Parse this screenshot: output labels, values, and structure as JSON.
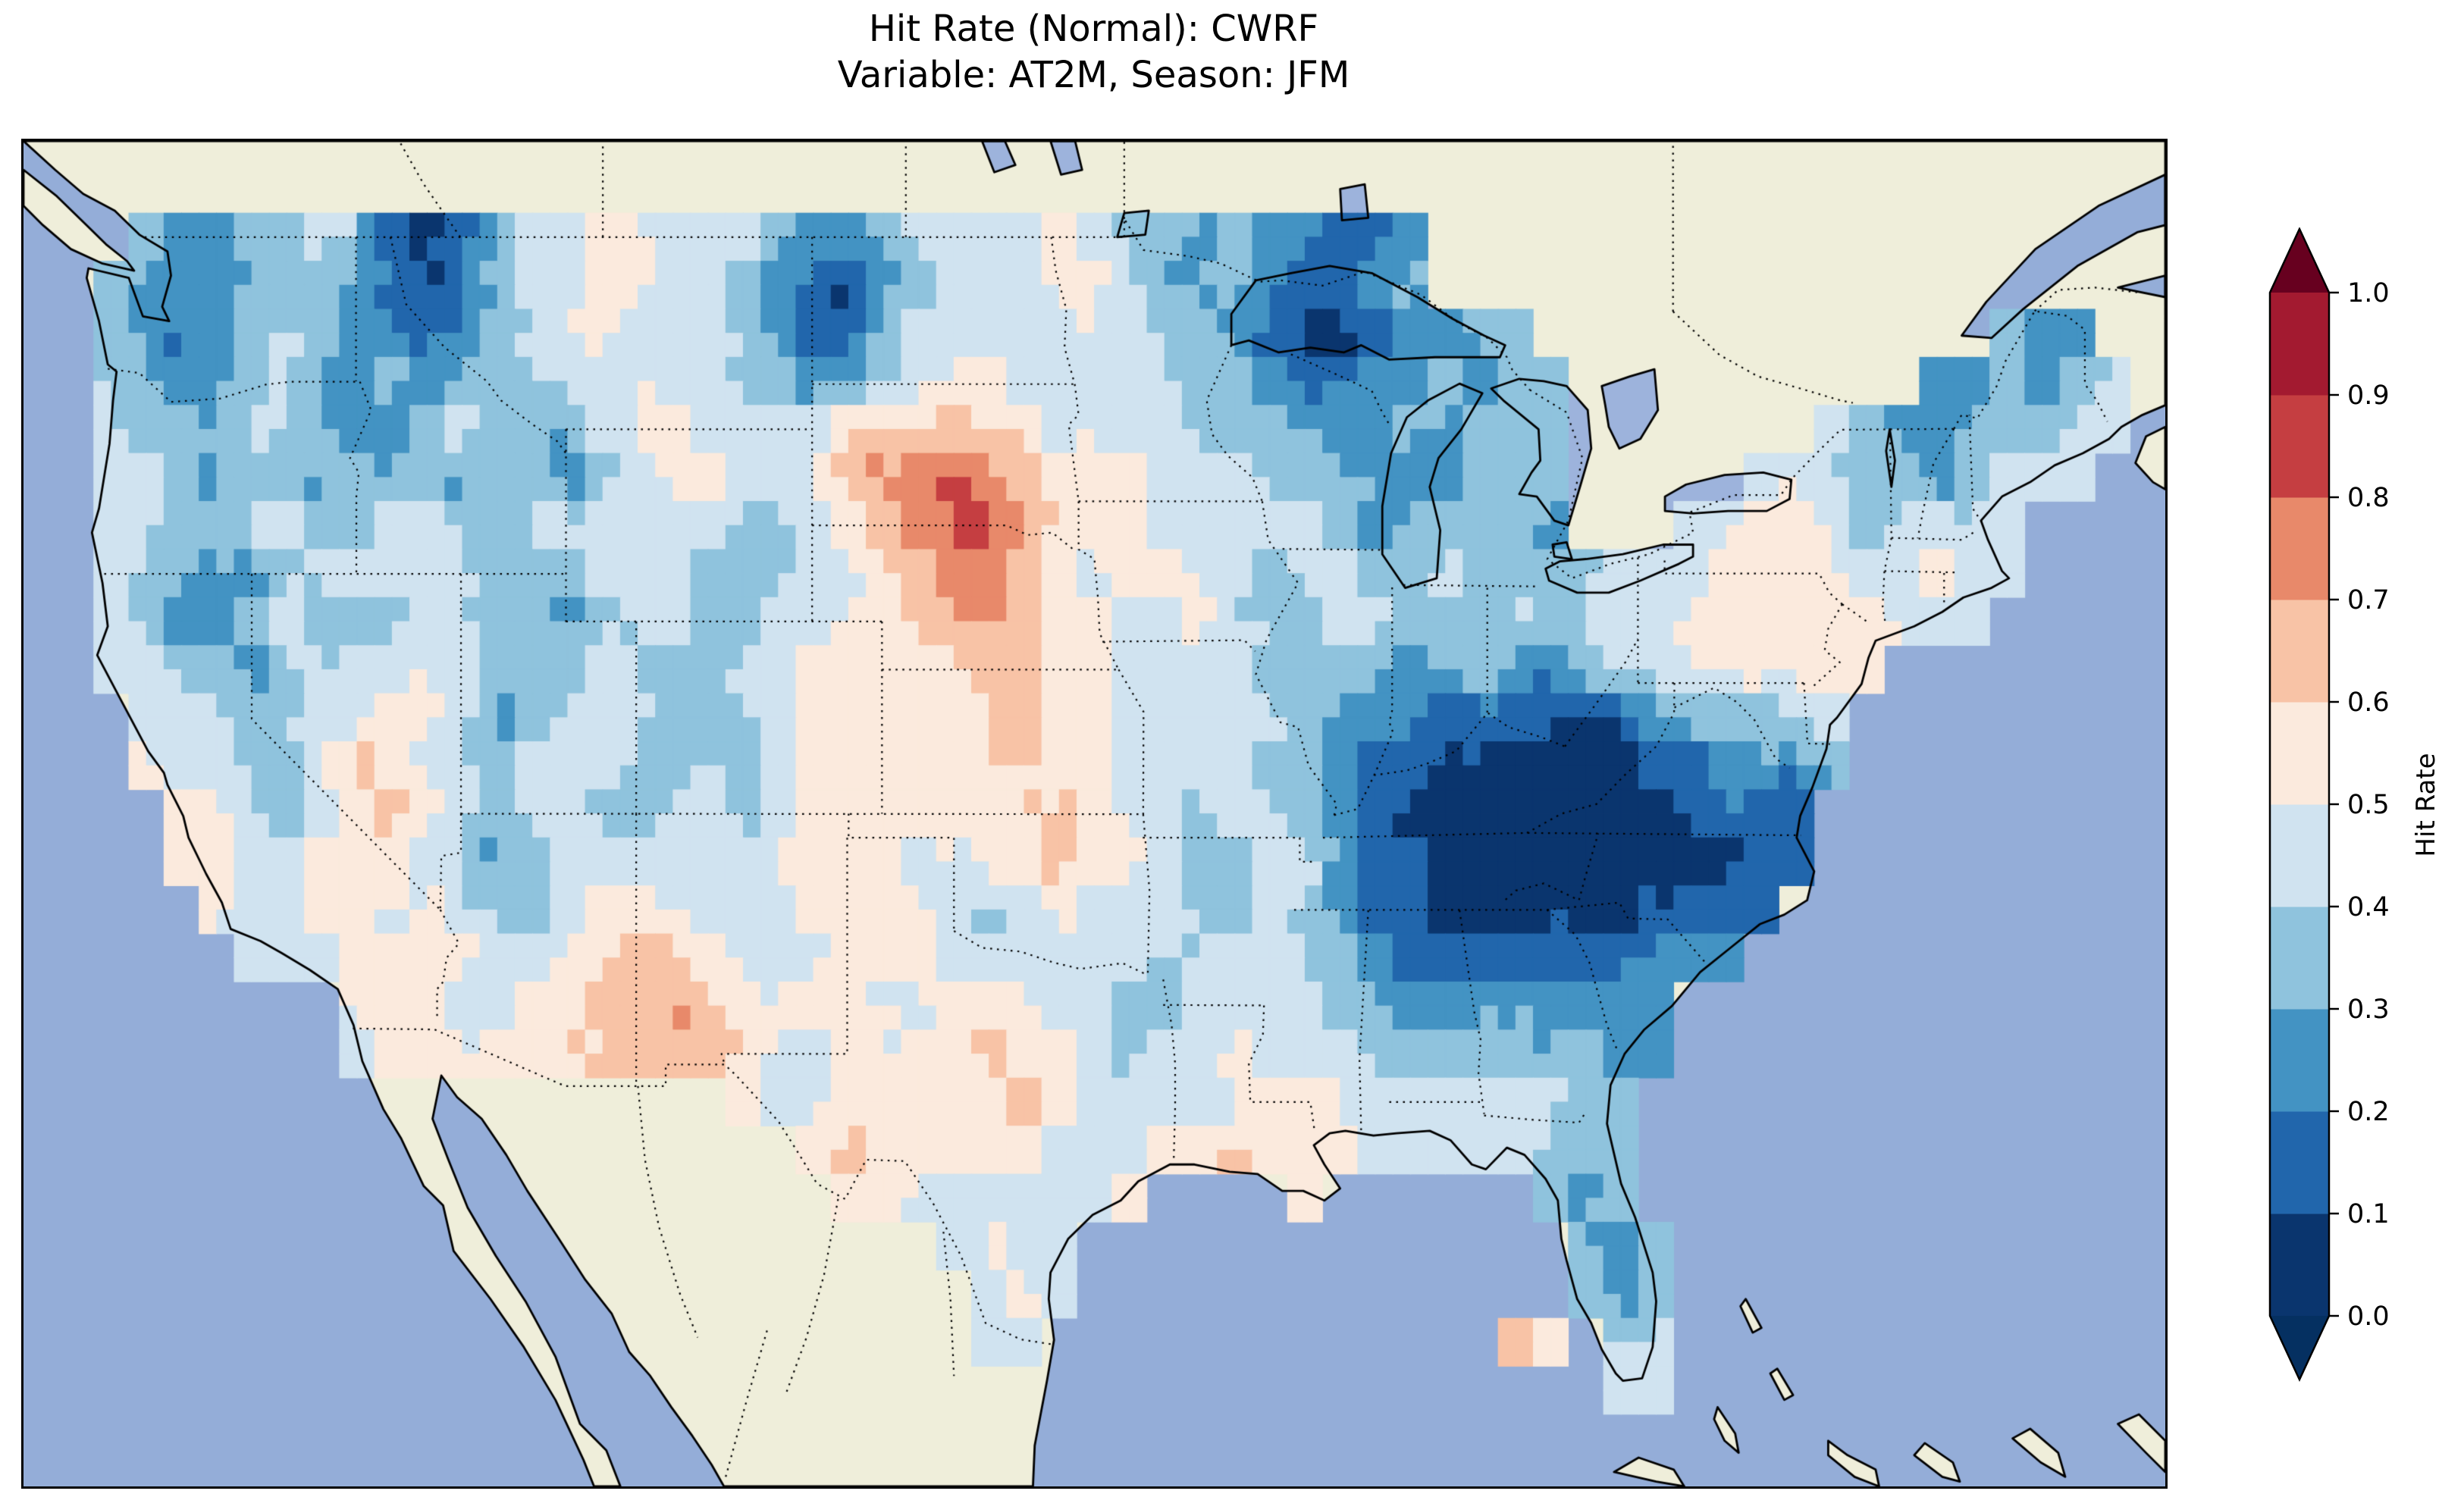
{
  "title": {
    "line1": "Hit Rate (Normal): CWRF",
    "line2": "Variable: AT2M, Season: JFM"
  },
  "colorbar": {
    "label": "Hit Rate",
    "ticks": [
      "0.0",
      "0.1",
      "0.2",
      "0.3",
      "0.4",
      "0.5",
      "0.6",
      "0.7",
      "0.8",
      "0.9",
      "1.0"
    ]
  },
  "colors": {
    "background": "#ffffff",
    "ocean": "#94add8",
    "lake": "#9db3dc",
    "land": "#efeeda",
    "coast": "#000000",
    "border": "#000000",
    "title_color": "#000000",
    "bins": [
      "#0a356e",
      "#2166ac",
      "#4393c3",
      "#8fc3dd",
      "#d0e3f0",
      "#fbeadd",
      "#f8c3a6",
      "#e8896a",
      "#c53e41",
      "#a31a30"
    ],
    "under": "#053061",
    "over": "#67001f"
  },
  "chart_data": {
    "type": "heatmap",
    "title": "Hit Rate (Normal): CWRF",
    "subtitle": "Variable: AT2M, Season: JFM",
    "metric": "Hit Rate (Normal)",
    "model": "CWRF",
    "variable": "AT2M",
    "season": "JFM",
    "colorbar_label": "Hit Rate",
    "value_min": 0.0,
    "value_max": 1.0,
    "bin_width": 0.1,
    "colorbar_ticks": [
      0.0,
      0.1,
      0.2,
      0.3,
      0.4,
      0.5,
      0.6,
      0.7,
      0.8,
      0.9,
      1.0
    ],
    "legend_position": "right",
    "map_extent": {
      "lon_min": -126.5,
      "lon_max": -65.5,
      "lat_min": 23,
      "lat_max": 51
    },
    "grid": {
      "description": "Approximate hit-rate field over CONUS read from the map; each char is one 1x1 degree cell; digit d means hit rate in bin [d/10,(d+1)/10); '.' = no data (outside CWRF domain)",
      "lon_first": -125,
      "lon_step": 1,
      "lat_first": 49,
      "lat_step": -1,
      "no_data": ".",
      "rows": [
        "..3223343101344554443223444454332322112....................",
        ".32213332101344554432102344455432321123....................",
        ".32123432212344544432113444444433210012233.............322.",
        ".332234223233344444332234554444433211223233..........223234",
        ".433344322343324554444665655444433332232333.......432233344",
        ".443233233323323455445677876555444333222333.....4443323444.",
        ".443344334433444444334567887555444443233332...4455434444...",
        ".4332234444433344433344567765455443443343333444555544544...",
        ".432234333443323443344556676554454334433343444555555444....",
        ".443323444443334333445555566554444333323322344455555.......",
        "..4443344554234443334555555655444443222111101233334........",
        "..5443356544344433434555556655444433211000000112223........",
        "...55434565434433443455555556544344321000000001111.........",
        "...55445554323444444555544556554334421100000000011.........",
        "....544554543345544445555434544433432110000001111..........",
        ".....4445555445566544455544444434444321111111222...........",
        "........55544556676555544555443344443322222222.............",
        "........45555556666544555565543445444333333322.............",
        "...................54455555654444455544444433..............",
        ".....................565555544455655544444333..............",
        "......................554444445....5......323..............",
        ".........................4544..............323.............",
        "..........................454..............323.............",
        "..........................44.............65.34.............",
        "............................................44............."
      ]
    }
  }
}
